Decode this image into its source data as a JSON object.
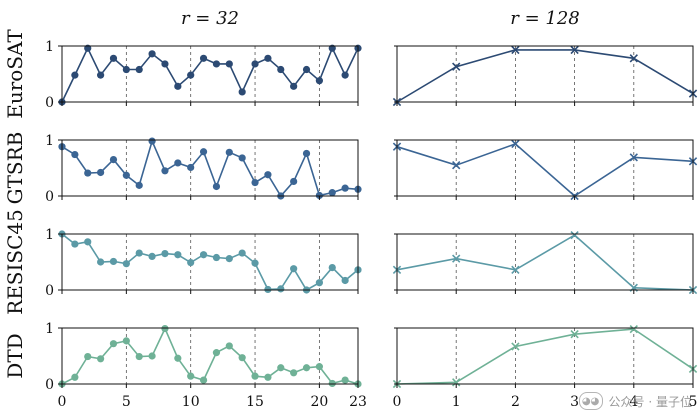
{
  "chart_data": [
    {
      "type": "line",
      "title": "r = 32",
      "x_ticks": [
        0,
        5,
        10,
        15,
        20,
        23
      ],
      "vlines": [
        5,
        10,
        15,
        20
      ],
      "xlim": [
        0,
        23
      ],
      "ylim": [
        0,
        1
      ],
      "y_ticks": [
        0,
        1
      ],
      "marker": "circle",
      "series": [
        {
          "name": "EuroSAT",
          "color": "#2c4a73",
          "x": [
            0,
            1,
            2,
            3,
            4,
            5,
            6,
            7,
            8,
            9,
            10,
            11,
            12,
            13,
            14,
            15,
            16,
            17,
            18,
            19,
            20,
            21,
            22,
            23
          ],
          "values": [
            0.0,
            0.48,
            0.96,
            0.48,
            0.78,
            0.58,
            0.58,
            0.86,
            0.68,
            0.28,
            0.48,
            0.78,
            0.68,
            0.68,
            0.18,
            0.68,
            0.78,
            0.58,
            0.28,
            0.58,
            0.38,
            0.96,
            0.48,
            0.96
          ]
        },
        {
          "name": "GTSRB",
          "color": "#3b6594",
          "x": [
            0,
            1,
            2,
            3,
            4,
            5,
            6,
            7,
            8,
            9,
            10,
            11,
            12,
            13,
            14,
            15,
            16,
            17,
            18,
            19,
            20,
            21,
            22,
            23
          ],
          "values": [
            0.88,
            0.74,
            0.41,
            0.42,
            0.65,
            0.37,
            0.19,
            0.98,
            0.45,
            0.59,
            0.51,
            0.79,
            0.17,
            0.78,
            0.68,
            0.24,
            0.38,
            0.0,
            0.26,
            0.76,
            0.01,
            0.06,
            0.14,
            0.12
          ]
        },
        {
          "name": "RESISC45",
          "color": "#5b9aa6",
          "x": [
            0,
            1,
            2,
            3,
            4,
            5,
            6,
            7,
            8,
            9,
            10,
            11,
            12,
            13,
            14,
            15,
            16,
            17,
            18,
            19,
            20,
            21,
            22,
            23
          ],
          "values": [
            1.0,
            0.82,
            0.86,
            0.5,
            0.51,
            0.47,
            0.66,
            0.6,
            0.65,
            0.63,
            0.49,
            0.63,
            0.58,
            0.56,
            0.66,
            0.48,
            0.01,
            0.02,
            0.38,
            0.0,
            0.13,
            0.4,
            0.17,
            0.36
          ]
        },
        {
          "name": "DTD",
          "color": "#6fb196",
          "x": [
            0,
            1,
            2,
            3,
            4,
            5,
            6,
            7,
            8,
            9,
            10,
            11,
            12,
            13,
            14,
            15,
            16,
            17,
            18,
            19,
            20,
            21,
            22,
            23
          ],
          "values": [
            0.0,
            0.12,
            0.49,
            0.45,
            0.72,
            0.77,
            0.49,
            0.5,
            0.99,
            0.46,
            0.14,
            0.07,
            0.56,
            0.68,
            0.47,
            0.14,
            0.12,
            0.29,
            0.2,
            0.29,
            0.31,
            0.01,
            0.07,
            0.0
          ]
        }
      ]
    },
    {
      "type": "line",
      "title": "r = 128",
      "x_ticks": [
        0,
        1,
        2,
        3,
        4,
        5
      ],
      "vlines": [
        1,
        2,
        3,
        4
      ],
      "xlim": [
        0,
        5
      ],
      "ylim": [
        0,
        1
      ],
      "marker": "x",
      "series": [
        {
          "name": "EuroSAT",
          "color": "#2c4a73",
          "x": [
            0,
            1,
            2,
            3,
            4,
            5
          ],
          "values": [
            0.0,
            0.63,
            0.93,
            0.93,
            0.78,
            0.15
          ]
        },
        {
          "name": "GTSRB",
          "color": "#3b6594",
          "x": [
            0,
            1,
            2,
            3,
            4,
            5
          ],
          "values": [
            0.88,
            0.55,
            0.93,
            0.0,
            0.69,
            0.62
          ]
        },
        {
          "name": "RESISC45",
          "color": "#5b9aa6",
          "x": [
            0,
            1,
            2,
            3,
            4,
            5
          ],
          "values": [
            0.36,
            0.56,
            0.36,
            0.98,
            0.04,
            0.0
          ]
        },
        {
          "name": "DTD",
          "color": "#6fb196",
          "x": [
            0,
            1,
            2,
            3,
            4,
            5
          ],
          "values": [
            0.0,
            0.03,
            0.67,
            0.89,
            0.98,
            0.27
          ]
        }
      ]
    }
  ],
  "watermark": {
    "icon": "wechat-icon",
    "text": "公众号 · 量子位"
  }
}
